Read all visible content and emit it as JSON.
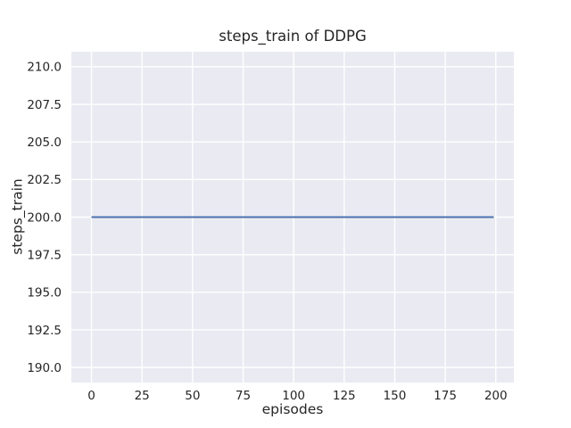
{
  "figure": {
    "background": "#ffffff"
  },
  "chart_data": {
    "type": "line",
    "title": "steps_train of DDPG",
    "xlabel": "episodes",
    "ylabel": "steps_train",
    "xlim": [
      -9.95,
      208.95
    ],
    "ylim": [
      189.0,
      211.0
    ],
    "xticks": [
      0,
      25,
      50,
      75,
      100,
      125,
      150,
      175,
      200
    ],
    "xtick_labels": [
      "0",
      "25",
      "50",
      "75",
      "100",
      "125",
      "150",
      "175",
      "200"
    ],
    "yticks": [
      190.0,
      192.5,
      195.0,
      197.5,
      200.0,
      202.5,
      205.0,
      207.5,
      210.0
    ],
    "ytick_labels": [
      "190.0",
      "192.5",
      "195.0",
      "197.5",
      "200.0",
      "202.5",
      "205.0",
      "207.5",
      "210.0"
    ],
    "grid": true,
    "legend": "none",
    "series": [
      {
        "name": "steps_train",
        "color": "#4c72b0",
        "x": [
          0,
          199
        ],
        "y": [
          200,
          200
        ],
        "constant_value": 200
      }
    ],
    "style": {
      "plot_bg": "#eaeaf2",
      "grid_color": "#ffffff",
      "text_color": "#262626",
      "line_width": 2.1,
      "grid_width": 1.4
    }
  }
}
